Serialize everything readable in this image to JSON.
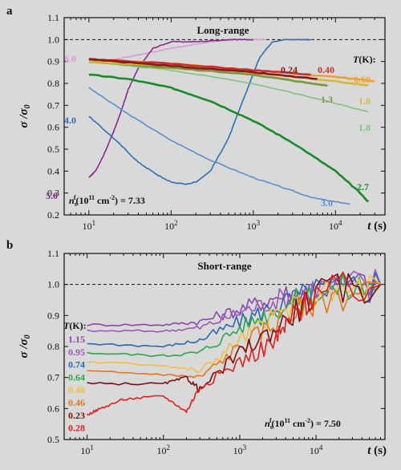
{
  "chart_data": [
    {
      "panel": "a",
      "type": "line",
      "title": "Long-range",
      "xlabel": "t (s)",
      "ylabel": "σ / σ0",
      "xscale": "log",
      "xlim": [
        5,
        40000
      ],
      "ylim": [
        0.2,
        1.1
      ],
      "xticks": [
        "10^1",
        "10^2",
        "10^3",
        "10^4"
      ],
      "yticks": [
        "0.2",
        "0.3",
        "0.4",
        "0.5",
        "0.6",
        "0.7",
        "0.8",
        "0.9",
        "1.0",
        "1.1"
      ],
      "reference_line": 1.0,
      "legend_title": "T(K):",
      "annotation": "n_s^f(10^11 cm^-2) = 7.33",
      "series": [
        {
          "name": "6.0",
          "color": "#d89ad8",
          "x": [
            10,
            20,
            40,
            100,
            300,
            600,
            1000,
            1400
          ],
          "y": [
            0.9,
            0.91,
            0.93,
            0.96,
            0.99,
            1.0,
            1.0,
            1.0
          ]
        },
        {
          "name": "5.0",
          "color": "#8a2b8a",
          "x": [
            10,
            12,
            15,
            20,
            25,
            30,
            40,
            60,
            100,
            200,
            500,
            1000
          ],
          "y": [
            0.37,
            0.4,
            0.47,
            0.58,
            0.68,
            0.77,
            0.87,
            0.96,
            0.99,
            0.99,
            1.0,
            1.0
          ]
        },
        {
          "name": "4.0",
          "color": "#2f6fb6",
          "x": [
            10,
            20,
            40,
            70,
            100,
            150,
            200,
            300,
            500,
            800,
            1200,
            1700,
            2500,
            4000,
            5000
          ],
          "y": [
            0.65,
            0.55,
            0.44,
            0.38,
            0.35,
            0.34,
            0.35,
            0.4,
            0.55,
            0.75,
            0.92,
            0.99,
            1.0,
            1.0,
            1.0
          ]
        },
        {
          "name": "3.0",
          "color": "#5a8fd0",
          "x": [
            10,
            30,
            100,
            300,
            1000,
            3000,
            5000,
            10000,
            15000
          ],
          "y": [
            0.78,
            0.66,
            0.54,
            0.45,
            0.37,
            0.31,
            0.28,
            0.26,
            0.25
          ]
        },
        {
          "name": "2.7",
          "color": "#1a8a2a",
          "x": [
            10,
            30,
            100,
            300,
            1000,
            3000,
            10000,
            20000,
            25000
          ],
          "y": [
            0.84,
            0.82,
            0.78,
            0.72,
            0.63,
            0.53,
            0.4,
            0.3,
            0.26
          ]
        },
        {
          "name": "1.8",
          "color": "#7ec47e",
          "x": [
            10,
            100,
            1000,
            10000,
            25000
          ],
          "y": [
            0.9,
            0.86,
            0.8,
            0.71,
            0.67
          ]
        },
        {
          "name": "1.3",
          "color": "#7a9a3a",
          "x": [
            10,
            100,
            1000,
            5000,
            8000
          ],
          "y": [
            0.9,
            0.87,
            0.84,
            0.8,
            0.79
          ]
        },
        {
          "name": "1.0",
          "color": "#d6b83c",
          "x": [
            10,
            100,
            1000,
            10000,
            25000
          ],
          "y": [
            0.9,
            0.88,
            0.85,
            0.81,
            0.79
          ]
        },
        {
          "name": "0.60",
          "color": "#f0a030",
          "x": [
            10,
            100,
            1000,
            10000,
            30000
          ],
          "y": [
            0.91,
            0.89,
            0.86,
            0.83,
            0.81
          ]
        },
        {
          "name": "0.40",
          "color": "#c83030",
          "x": [
            10,
            100,
            1000,
            5000
          ],
          "y": [
            0.91,
            0.89,
            0.86,
            0.84
          ]
        },
        {
          "name": "0.24",
          "color": "#8a1a1a",
          "x": [
            10,
            100,
            1000,
            6000
          ],
          "y": [
            0.91,
            0.88,
            0.85,
            0.82
          ]
        }
      ]
    },
    {
      "panel": "b",
      "type": "line",
      "title": "Short-range",
      "xlabel": "t (s)",
      "ylabel": "σ / σ0",
      "xscale": "log",
      "xlim": [
        5,
        80000
      ],
      "ylim": [
        0.5,
        1.1
      ],
      "xticks": [
        "10^1",
        "10^2",
        "10^3",
        "10^4"
      ],
      "yticks": [
        "0.5",
        "0.6",
        "0.7",
        "0.8",
        "0.9",
        "1.0",
        "1.1"
      ],
      "reference_line": 1.0,
      "legend_title": "T(K):",
      "annotation": "n_s^f(10^11 cm^-2) = 7.50",
      "series": [
        {
          "name": "1.15",
          "color": "#8a4aa8",
          "x": [
            10,
            100,
            300,
            1000,
            3000,
            10000,
            70000
          ],
          "y": [
            0.87,
            0.87,
            0.88,
            0.92,
            0.96,
            0.99,
            1.0
          ]
        },
        {
          "name": "0.95",
          "color": "#9a5ab8",
          "x": [
            10,
            100,
            300,
            1000,
            3000,
            10000,
            70000
          ],
          "y": [
            0.85,
            0.85,
            0.86,
            0.91,
            0.95,
            0.99,
            1.0
          ]
        },
        {
          "name": "0.74",
          "color": "#2a6ab0",
          "x": [
            10,
            100,
            300,
            1000,
            3000,
            10000,
            70000
          ],
          "y": [
            0.81,
            0.8,
            0.82,
            0.88,
            0.93,
            0.98,
            1.0
          ]
        },
        {
          "name": "0.64",
          "color": "#2aa84a",
          "x": [
            10,
            100,
            300,
            1000,
            3000,
            10000,
            70000
          ],
          "y": [
            0.78,
            0.77,
            0.78,
            0.86,
            0.92,
            0.97,
            1.0
          ]
        },
        {
          "name": "0.48",
          "color": "#f0c040",
          "x": [
            10,
            100,
            300,
            1000,
            3000,
            10000,
            70000
          ],
          "y": [
            0.75,
            0.74,
            0.72,
            0.82,
            0.9,
            0.96,
            1.0
          ]
        },
        {
          "name": "0.46",
          "color": "#e07820",
          "x": [
            10,
            100,
            300,
            1000,
            3000,
            10000,
            70000
          ],
          "y": [
            0.72,
            0.71,
            0.7,
            0.8,
            0.88,
            0.95,
            1.0
          ]
        },
        {
          "name": "0.23",
          "color": "#7a1010",
          "x": [
            10,
            100,
            200,
            300,
            1000,
            3000,
            10000,
            70000
          ],
          "y": [
            0.68,
            0.68,
            0.7,
            0.66,
            0.78,
            0.86,
            0.97,
            1.0
          ]
        },
        {
          "name": "0.28",
          "color": "#e02020",
          "x": [
            10,
            15,
            30,
            100,
            200,
            300,
            1000,
            3000,
            5000,
            10000,
            70000
          ],
          "y": [
            0.58,
            0.6,
            0.63,
            0.64,
            0.59,
            0.67,
            0.75,
            0.82,
            0.9,
            0.97,
            1.0
          ]
        }
      ]
    }
  ]
}
